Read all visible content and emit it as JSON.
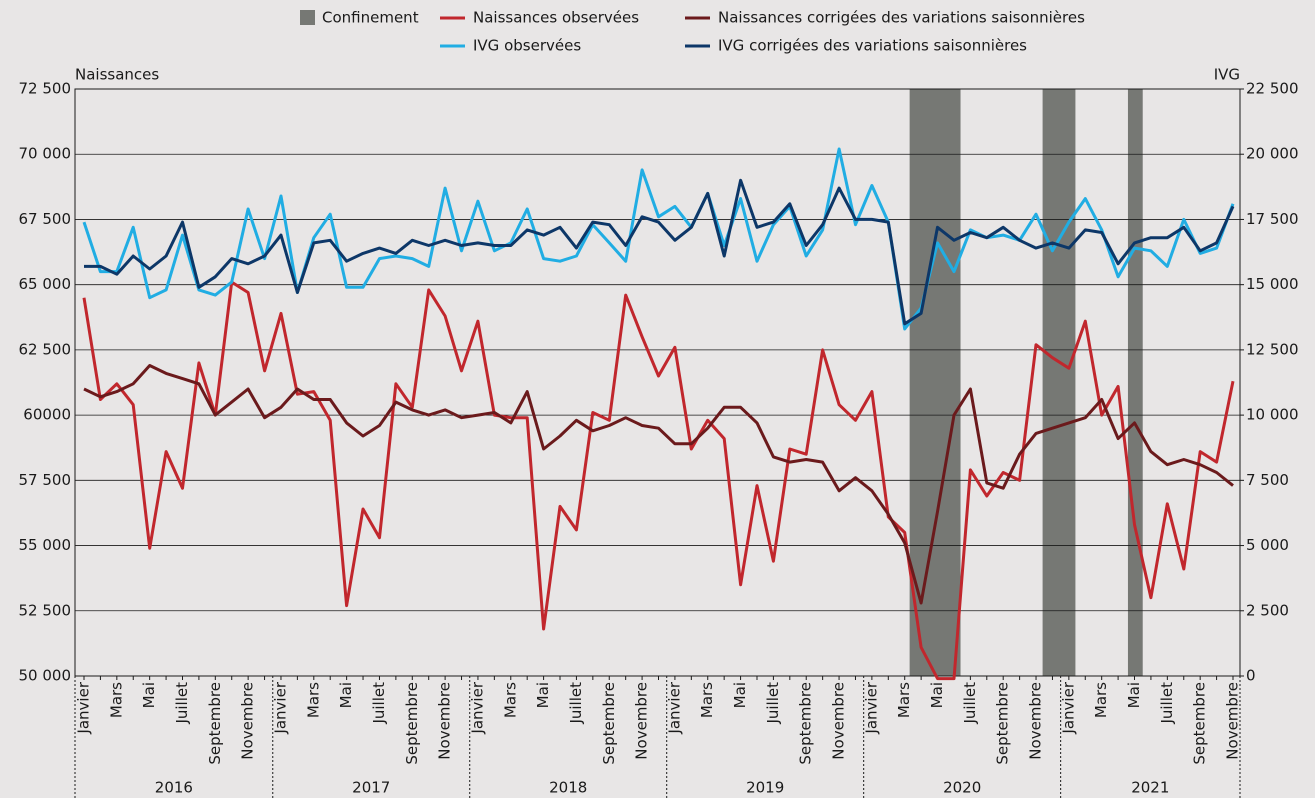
{
  "chart_data": {
    "type": "line",
    "y_label": "Naissances",
    "y2_label": "IVG",
    "categories": [
      "Janvier",
      null,
      "Mars",
      null,
      "Mai",
      null,
      "Juillet",
      null,
      "Septembre",
      null,
      "Novembre",
      null,
      "Janvier",
      null,
      "Mars",
      null,
      "Mai",
      null,
      "Juillet",
      null,
      "Septembre",
      null,
      "Novembre",
      null,
      "Janvier",
      null,
      "Mars",
      null,
      "Mai",
      null,
      "Juillet",
      null,
      "Septembre",
      null,
      "Novembre",
      null,
      "Janvier",
      null,
      "Mars",
      null,
      "Mai",
      null,
      "Juillet",
      null,
      "Septembre",
      null,
      "Novembre",
      null,
      "Janvier",
      null,
      "Mars",
      null,
      "Mai",
      null,
      "Juillet",
      null,
      "Septembre",
      null,
      "Novembre",
      null,
      "Janvier",
      null,
      "Mars",
      null,
      "Mai",
      null,
      "Juillet",
      null,
      "Septembre",
      null,
      "Novembre"
    ],
    "years": [
      "2016",
      "2017",
      "2018",
      "2019",
      "2020",
      "2021"
    ],
    "bands_name": "Confinement",
    "bands_color": "#767874",
    "bands": [
      {
        "start": 50.3,
        "end": 53.4
      },
      {
        "start": 58.4,
        "end": 60.4
      },
      {
        "start": 63.6,
        "end": 64.5
      }
    ],
    "series": [
      {
        "name": "Naissances observées",
        "color": "#c1272d",
        "axis": "y",
        "values": [
          64500,
          60600,
          61200,
          60400,
          54900,
          58600,
          57200,
          62000,
          60000,
          65100,
          64700,
          61700,
          63900,
          60800,
          60900,
          59800,
          52700,
          56400,
          55300,
          61200,
          60300,
          64800,
          63800,
          61700,
          63600,
          60000,
          59900,
          59900,
          51800,
          56500,
          55600,
          60100,
          59800,
          64600,
          63000,
          61500,
          62600,
          58700,
          59800,
          59100,
          53500,
          57300,
          54400,
          58700,
          58500,
          62500,
          60400,
          59800,
          60900,
          56100,
          55500,
          51100,
          49900,
          49900,
          57900,
          56900,
          57800,
          57500,
          62700,
          62200,
          61800,
          63600,
          60000,
          61100,
          55800,
          53000,
          56600,
          54100,
          58600,
          58200,
          61300
        ]
      },
      {
        "name": "Naissances corrigées des variations saisonnières",
        "color": "#6b1a1c",
        "axis": "y",
        "values": [
          61000,
          60700,
          60900,
          61200,
          61900,
          61600,
          61400,
          61200,
          60000,
          60500,
          61000,
          59900,
          60300,
          61000,
          60600,
          60600,
          59700,
          59200,
          59600,
          60500,
          60200,
          60000,
          60200,
          59900,
          60000,
          60100,
          59700,
          60900,
          58700,
          59200,
          59800,
          59400,
          59600,
          59900,
          59600,
          59500,
          58900,
          58900,
          59500,
          60300,
          60300,
          59700,
          58400,
          58200,
          58300,
          58200,
          57100,
          57600,
          57100,
          56200,
          55100,
          52800,
          56300,
          60000,
          61000,
          57400,
          57200,
          58500,
          59300,
          59500,
          59700,
          59900,
          60600,
          59100,
          59700,
          58600,
          58100,
          58300,
          58100,
          57800,
          57300
        ]
      },
      {
        "name": "IVG observées",
        "color": "#21ade3",
        "axis": "y2",
        "values": [
          17400,
          15500,
          15500,
          17200,
          14500,
          14800,
          16900,
          14800,
          14600,
          15100,
          17900,
          16000,
          18400,
          14700,
          16800,
          17700,
          14900,
          14900,
          16000,
          16100,
          16000,
          15700,
          18700,
          16300,
          18200,
          16300,
          16600,
          17900,
          16000,
          15900,
          16100,
          17300,
          16600,
          15900,
          19400,
          17600,
          18000,
          17200,
          18500,
          16500,
          18300,
          15900,
          17300,
          18000,
          16100,
          17100,
          20200,
          17300,
          18800,
          17400,
          13300,
          14100,
          16600,
          15500,
          17100,
          16800,
          16900,
          16700,
          17700,
          16300,
          17400,
          18300,
          17100,
          15300,
          16400,
          16300,
          15700,
          17500,
          16200,
          16400,
          18100
        ]
      },
      {
        "name": "IVG corrigées des variations saisonnières",
        "color": "#0d3768",
        "axis": "y2",
        "values": [
          15700,
          15700,
          15400,
          16100,
          15600,
          16100,
          17400,
          14900,
          15300,
          16000,
          15800,
          16100,
          16900,
          14700,
          16600,
          16700,
          15900,
          16200,
          16400,
          16200,
          16700,
          16500,
          16700,
          16500,
          16600,
          16500,
          16500,
          17100,
          16900,
          17200,
          16400,
          17400,
          17300,
          16500,
          17600,
          17400,
          16700,
          17200,
          18500,
          16100,
          19000,
          17200,
          17400,
          18100,
          16500,
          17300,
          18700,
          17500,
          17500,
          17400,
          13500,
          13900,
          17200,
          16700,
          17000,
          16800,
          17200,
          16700,
          16400,
          16600,
          16400,
          17100,
          17000,
          15800,
          16600,
          16800,
          16800,
          17200,
          16300,
          16600,
          18000
        ]
      }
    ],
    "ylim": [
      50000,
      72500
    ],
    "yticks": [
      {
        "value": 50000,
        "label": "50 000"
      },
      {
        "value": 52500,
        "label": "52 500"
      },
      {
        "value": 55000,
        "label": "55 000"
      },
      {
        "value": 57500,
        "label": "57 500"
      },
      60000,
      {
        "value": 62500,
        "label": "62 500"
      },
      {
        "value": 65000,
        "label": "65 000"
      },
      {
        "value": 67500,
        "label": "67 500"
      },
      {
        "value": 70000,
        "label": "70 000"
      },
      {
        "value": 72500,
        "label": "72 500"
      }
    ],
    "y2lim": [
      0,
      22500
    ],
    "y2ticks": [
      0,
      {
        "value": 2500,
        "label": "2 500"
      },
      {
        "value": 5000,
        "label": "5 000"
      },
      {
        "value": 7500,
        "label": "7 500"
      },
      {
        "value": 10000,
        "label": "10 000"
      },
      {
        "value": 12500,
        "label": "12 500"
      },
      {
        "value": 15000,
        "label": "15 000"
      },
      {
        "value": 17500,
        "label": "17 500"
      },
      {
        "value": 20000,
        "label": "20 000"
      },
      {
        "value": 22500,
        "label": "22 500"
      }
    ],
    "grid": true
  }
}
